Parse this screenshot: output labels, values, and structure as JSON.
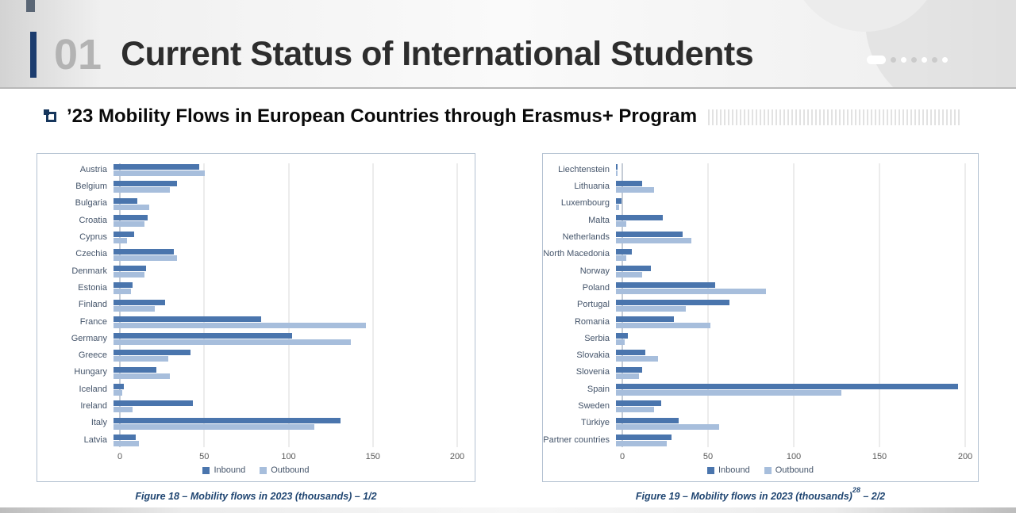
{
  "header": {
    "number": "01",
    "title": "Current Status of International Students"
  },
  "subtitle": "’23 Mobility Flows in European Countries through Erasmus+ Program",
  "colors": {
    "inbound": "#4a75ad",
    "outbound": "#a7bedc",
    "accent_navy": "#1c3c6e",
    "caption_blue": "#1f4571"
  },
  "chart_data": [
    {
      "type": "bar",
      "orientation": "horizontal",
      "title": "",
      "xlabel": "",
      "ylabel": "",
      "xlim": [
        0,
        200
      ],
      "ticks": [
        0,
        50,
        100,
        150,
        200
      ],
      "grid": true,
      "legend_position": "bottom",
      "categories": [
        "Austria",
        "Belgium",
        "Bulgaria",
        "Croatia",
        "Cyprus",
        "Czechia",
        "Denmark",
        "Estonia",
        "Finland",
        "France",
        "Germany",
        "Greece",
        "Hungary",
        "Iceland",
        "Ireland",
        "Italy",
        "Latvia"
      ],
      "series": [
        {
          "name": "Inbound",
          "color": "#4a75ad",
          "values": [
            50,
            37,
            14,
            20,
            12,
            35,
            19,
            11,
            30,
            86,
            104,
            45,
            25,
            6,
            46,
            132,
            13
          ]
        },
        {
          "name": "Outbound",
          "color": "#a7bedc",
          "values": [
            53,
            33,
            21,
            18,
            8,
            37,
            18,
            10,
            24,
            147,
            138,
            32,
            33,
            5,
            11,
            117,
            15
          ]
        }
      ],
      "caption": {
        "prefix": "Figure 18 – Mobility flows in 2023 (thousands) – 1/2",
        "sup": "",
        "suffix": ""
      }
    },
    {
      "type": "bar",
      "orientation": "horizontal",
      "title": "",
      "xlabel": "",
      "ylabel": "",
      "xlim": [
        0,
        200
      ],
      "ticks": [
        0,
        50,
        100,
        150,
        200
      ],
      "grid": true,
      "legend_position": "bottom",
      "categories": [
        "Liechtenstein",
        "Lithuania",
        "Luxembourg",
        "Malta",
        "Netherlands",
        "North Macedonia",
        "Norway",
        "Poland",
        "Portugal",
        "Romania",
        "Serbia",
        "Slovakia",
        "Slovenia",
        "Spain",
        "Sweden",
        "Türkiye",
        "Partner countries"
      ],
      "series": [
        {
          "name": "Inbound",
          "color": "#4a75ad",
          "values": [
            1,
            15,
            3,
            27,
            38,
            9,
            20,
            57,
            65,
            33,
            7,
            17,
            15,
            196,
            26,
            36,
            32
          ]
        },
        {
          "name": "Outbound",
          "color": "#a7bedc",
          "values": [
            1,
            22,
            2,
            6,
            43,
            6,
            15,
            86,
            40,
            54,
            5,
            24,
            13,
            129,
            22,
            59,
            29
          ]
        }
      ],
      "caption": {
        "prefix": "Figure 19 – Mobility flows in 2023 (thousands)",
        "sup": "28",
        "suffix": " – 2/2"
      }
    }
  ]
}
